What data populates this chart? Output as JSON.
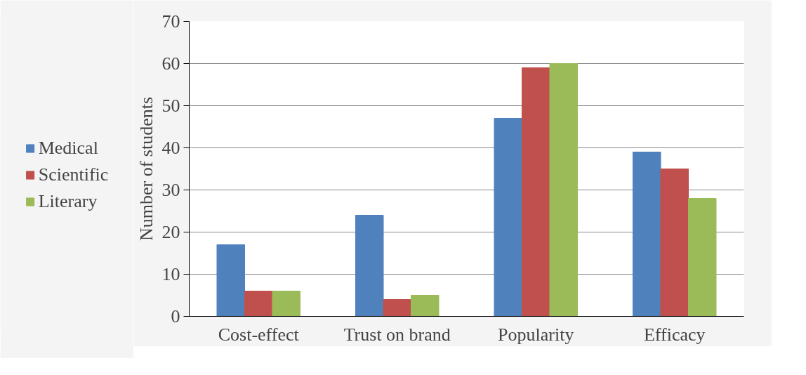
{
  "chart_data": {
    "type": "bar",
    "ylabel": "Number of students",
    "categories": [
      "Cost-effect",
      "Trust on brand",
      "Popularity",
      "Efficacy"
    ],
    "series": [
      {
        "name": "Medical",
        "color": "#4f81bd",
        "values": [
          17,
          24,
          47,
          39
        ]
      },
      {
        "name": "Scientific",
        "color": "#c0504d",
        "values": [
          6,
          4,
          59,
          35
        ]
      },
      {
        "name": "Literary",
        "color": "#9bbb59",
        "values": [
          6,
          5,
          60,
          28
        ]
      }
    ],
    "ylim": [
      0,
      70
    ],
    "yticks": [
      0,
      10,
      20,
      30,
      40,
      50,
      60,
      70
    ],
    "grid": "y",
    "legend": "left"
  }
}
